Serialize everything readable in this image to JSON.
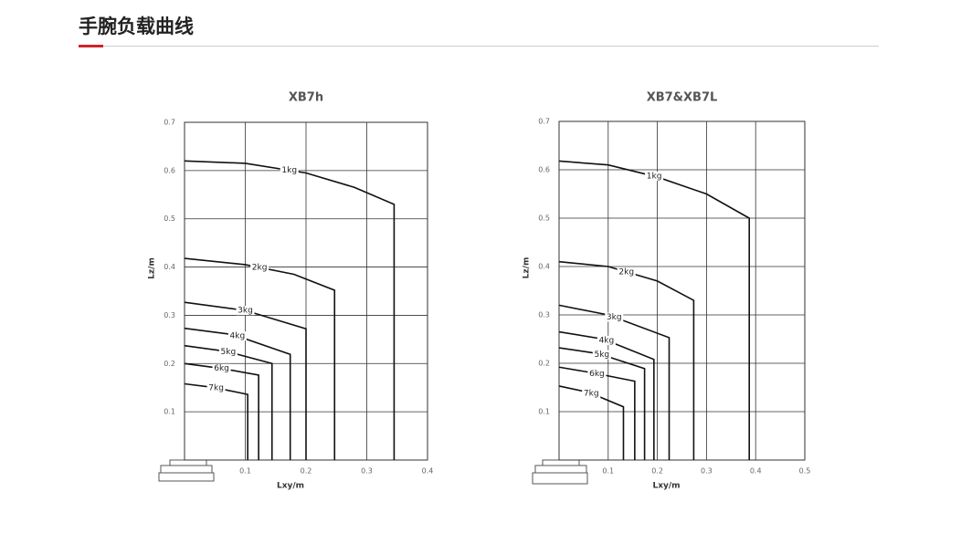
{
  "header": {
    "title": "手腕负载曲线"
  },
  "chart_data": [
    {
      "type": "line",
      "title": "XB7h",
      "x_label": "Lxy/m",
      "y_label": "Lz/m",
      "xlim": [
        0,
        0.4
      ],
      "ylim": [
        0,
        0.7
      ],
      "xticks": [
        0.1,
        0.2,
        0.3,
        0.4
      ],
      "yticks": [
        0.1,
        0.2,
        0.3,
        0.4,
        0.5,
        0.6,
        0.7
      ],
      "grid": true,
      "color": "#111111",
      "series": [
        {
          "name": "1kg",
          "x": [
            0,
            0.1,
            0.2,
            0.28,
            0.345,
            0.345
          ],
          "values": [
            0.62,
            0.615,
            0.595,
            0.565,
            0.53,
            0
          ]
        },
        {
          "name": "2kg",
          "x": [
            0,
            0.1,
            0.18,
            0.247,
            0.247
          ],
          "values": [
            0.418,
            0.405,
            0.385,
            0.352,
            0
          ]
        },
        {
          "name": "3kg",
          "x": [
            0,
            0.1,
            0.2,
            0.2
          ],
          "values": [
            0.327,
            0.31,
            0.272,
            0
          ]
        },
        {
          "name": "4kg",
          "x": [
            0,
            0.08,
            0.174,
            0.174
          ],
          "values": [
            0.273,
            0.26,
            0.219,
            0
          ]
        },
        {
          "name": "5kg",
          "x": [
            0,
            0.07,
            0.144,
            0.144
          ],
          "values": [
            0.237,
            0.225,
            0.2,
            0
          ]
        },
        {
          "name": "6kg",
          "x": [
            0,
            0.06,
            0.122,
            0.122
          ],
          "values": [
            0.2,
            0.19,
            0.176,
            0
          ]
        },
        {
          "name": "7kg",
          "x": [
            0,
            0.05,
            0.104,
            0.104
          ],
          "values": [
            0.158,
            0.15,
            0.136,
            0
          ]
        }
      ]
    },
    {
      "type": "line",
      "title": "XB7&XB7L",
      "x_label": "Lxy/m",
      "y_label": "Lz/m",
      "xlim": [
        0,
        0.5
      ],
      "ylim": [
        0,
        0.7
      ],
      "xticks": [
        0.1,
        0.2,
        0.3,
        0.4,
        0.5
      ],
      "yticks": [
        0.1,
        0.2,
        0.3,
        0.4,
        0.5,
        0.6,
        0.7
      ],
      "grid": true,
      "color": "#111111",
      "series": [
        {
          "name": "1kg",
          "x": [
            0,
            0.1,
            0.2,
            0.3,
            0.387,
            0.387
          ],
          "values": [
            0.618,
            0.61,
            0.585,
            0.55,
            0.5,
            0
          ]
        },
        {
          "name": "2kg",
          "x": [
            0,
            0.1,
            0.2,
            0.274,
            0.274
          ],
          "values": [
            0.41,
            0.4,
            0.37,
            0.33,
            0
          ]
        },
        {
          "name": "3kg",
          "x": [
            0,
            0.1,
            0.224,
            0.224
          ],
          "values": [
            0.32,
            0.3,
            0.253,
            0
          ]
        },
        {
          "name": "4kg",
          "x": [
            0,
            0.09,
            0.193,
            0.193
          ],
          "values": [
            0.265,
            0.25,
            0.208,
            0
          ]
        },
        {
          "name": "5kg",
          "x": [
            0,
            0.08,
            0.174,
            0.174
          ],
          "values": [
            0.232,
            0.22,
            0.189,
            0
          ]
        },
        {
          "name": "6kg",
          "x": [
            0,
            0.07,
            0.154,
            0.154
          ],
          "values": [
            0.192,
            0.18,
            0.163,
            0
          ]
        },
        {
          "name": "7kg",
          "x": [
            0,
            0.06,
            0.131,
            0.131
          ],
          "values": [
            0.153,
            0.14,
            0.11,
            0
          ]
        }
      ]
    }
  ]
}
